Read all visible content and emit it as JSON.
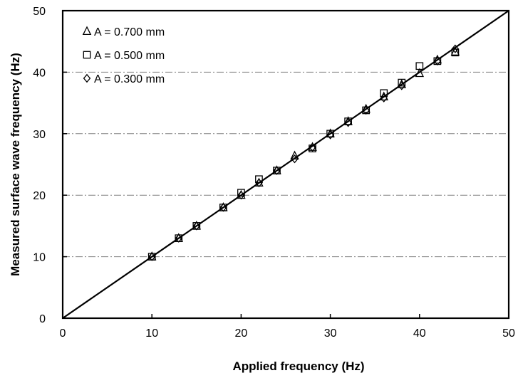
{
  "chart_data": {
    "type": "scatter",
    "xlabel": "Applied  frequency (Hz)",
    "ylabel": "Measured surface wave frequency (Hz)",
    "xlim": [
      0,
      50
    ],
    "ylim": [
      0,
      50
    ],
    "xticks": [
      "0",
      "10",
      "20",
      "30",
      "40",
      "50"
    ],
    "yticks": [
      "0",
      "10",
      "20",
      "30",
      "40",
      "50"
    ],
    "grid": "horizontal dash-dot",
    "legend_position": "top-left",
    "reference_line": {
      "x": [
        0,
        50
      ],
      "y": [
        0,
        50
      ]
    },
    "series": [
      {
        "name": "A = 0.700 mm",
        "marker": "triangle",
        "x": [
          10,
          13,
          15,
          18,
          20,
          22,
          24,
          26,
          28,
          30,
          32,
          34,
          36,
          38,
          40,
          42,
          44
        ],
        "y": [
          10.0,
          13.0,
          15.0,
          18.0,
          20.0,
          22.0,
          24.0,
          26.4,
          27.8,
          30.0,
          32.0,
          34.0,
          36.0,
          38.0,
          39.8,
          42.0,
          43.3
        ]
      },
      {
        "name": "A = 0.500 mm",
        "marker": "square",
        "x": [
          10,
          13,
          15,
          18,
          20,
          22,
          24,
          28,
          30,
          32,
          34,
          36,
          38,
          40,
          42,
          44
        ],
        "y": [
          10.0,
          13.0,
          15.0,
          18.0,
          20.4,
          22.6,
          24.0,
          27.6,
          30.0,
          32.0,
          33.8,
          36.6,
          38.3,
          41.0,
          41.8,
          43.2
        ]
      },
      {
        "name": "A = 0.300 mm",
        "marker": "diamond",
        "x": [
          10,
          13,
          15,
          18,
          20,
          22,
          24,
          26,
          28,
          30,
          32,
          34,
          36,
          38,
          42,
          44
        ],
        "y": [
          10.0,
          13.0,
          15.0,
          18.0,
          20.0,
          22.0,
          24.0,
          25.9,
          27.8,
          29.8,
          31.8,
          33.8,
          35.8,
          37.8,
          41.8,
          43.8
        ]
      }
    ]
  }
}
